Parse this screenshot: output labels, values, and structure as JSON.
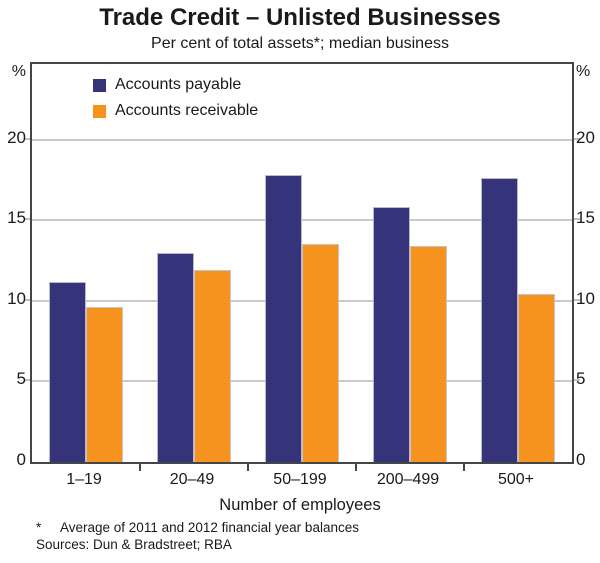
{
  "title": "Trade Credit – Unlisted Businesses",
  "subtitle": "Per cent of total assets*; median business",
  "legend": [
    {
      "label": "Accounts payable",
      "color": "#35337a"
    },
    {
      "label": "Accounts receivable",
      "color": "#f6921e"
    }
  ],
  "chart_data": {
    "type": "bar",
    "title": "Trade Credit – Unlisted Businesses",
    "subtitle": "Per cent of total assets*; median business",
    "categories": [
      "1–19",
      "20–49",
      "50–199",
      "200–499",
      "500+"
    ],
    "series": [
      {
        "name": "Accounts payable",
        "color": "#35337a",
        "values": [
          11.2,
          13.0,
          17.8,
          15.8,
          17.6
        ]
      },
      {
        "name": "Accounts receivable",
        "color": "#f6921e",
        "values": [
          9.6,
          11.9,
          13.5,
          13.4,
          10.4
        ]
      }
    ],
    "xlabel": "Number of employees",
    "ylabel": "Per cent of total assets",
    "y_unit": "%",
    "yticks": [
      0,
      5,
      10,
      15,
      20
    ],
    "ylim": [
      0,
      24.7
    ],
    "grid": true,
    "legend_position": "top-left",
    "colors": {
      "grid": "#cacaca",
      "axis": "#454545"
    }
  },
  "footnote": {
    "marker": "*",
    "text": "Average of 2011 and 2012 financial year balances",
    "sources": "Sources: Dun & Bradstreet; RBA"
  }
}
